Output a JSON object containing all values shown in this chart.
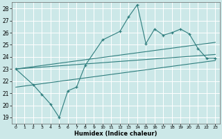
{
  "title": "",
  "xlabel": "Humidex (Indice chaleur)",
  "bg_color": "#cce8e8",
  "grid_color": "#ffffff",
  "line_color": "#2e7d7d",
  "xlim": [
    -0.5,
    23.5
  ],
  "ylim": [
    18.5,
    28.5
  ],
  "xticks": [
    0,
    1,
    2,
    3,
    4,
    5,
    6,
    7,
    8,
    9,
    10,
    11,
    12,
    13,
    14,
    15,
    16,
    17,
    18,
    19,
    20,
    21,
    22,
    23
  ],
  "yticks": [
    19,
    20,
    21,
    22,
    23,
    24,
    25,
    26,
    27,
    28
  ],
  "main_x": [
    0,
    2,
    3,
    4,
    5,
    6,
    7,
    8,
    10,
    12,
    13,
    14,
    15,
    16,
    17,
    18,
    19,
    20,
    21,
    22,
    23
  ],
  "main_y": [
    23.0,
    21.7,
    20.9,
    20.1,
    19.0,
    21.2,
    21.5,
    23.3,
    25.4,
    26.1,
    27.3,
    28.3,
    25.1,
    26.3,
    25.8,
    26.0,
    26.3,
    25.9,
    24.7,
    23.9,
    23.9
  ],
  "trend1_x": [
    0,
    23
  ],
  "trend1_y": [
    23.0,
    25.2
  ],
  "trend2_x": [
    0,
    23
  ],
  "trend2_y": [
    23.0,
    24.2
  ],
  "trend3_x": [
    0,
    23
  ],
  "trend3_y": [
    21.5,
    23.7
  ]
}
